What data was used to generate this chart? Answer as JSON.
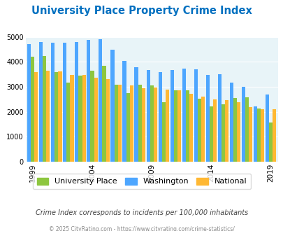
{
  "title": "University Place Property Crime Index",
  "years": [
    1999,
    2000,
    2001,
    2002,
    2003,
    2004,
    2005,
    2006,
    2007,
    2008,
    2009,
    2010,
    2011,
    2012,
    2013,
    2014,
    2015,
    2016,
    2017,
    2018,
    2019,
    2020
  ],
  "university_place": [
    4200,
    4250,
    3600,
    3180,
    3450,
    3650,
    3850,
    3100,
    2750,
    3080,
    3070,
    2380,
    2850,
    2850,
    2520,
    2230,
    2300,
    2560,
    2580,
    2140,
    1580,
    0
  ],
  "washington": [
    4720,
    4790,
    4760,
    4760,
    4800,
    4880,
    4900,
    4480,
    4040,
    3790,
    3670,
    3580,
    3680,
    3720,
    3700,
    3490,
    3520,
    3160,
    3010,
    2230,
    2680,
    0
  ],
  "national": [
    3600,
    3640,
    3620,
    3490,
    3490,
    3380,
    3320,
    3090,
    3070,
    2950,
    2980,
    2900,
    2860,
    2730,
    2600,
    2500,
    2480,
    2380,
    2200,
    2100,
    2110,
    0
  ],
  "up_color": "#8dc63f",
  "wa_color": "#4da6ff",
  "nat_color": "#ffb833",
  "title_color": "#0070c0",
  "plot_bg": "#e8f4f8",
  "ylabel_max": 5000,
  "yticks": [
    0,
    1000,
    2000,
    3000,
    4000,
    5000
  ],
  "xlabel_years": [
    1999,
    2004,
    2009,
    2014,
    2019
  ],
  "subtitle": "Crime Index corresponds to incidents per 100,000 inhabitants",
  "footer": "© 2025 CityRating.com - https://www.cityrating.com/crime-statistics/",
  "legend_labels": [
    "University Place",
    "Washington",
    "National"
  ]
}
